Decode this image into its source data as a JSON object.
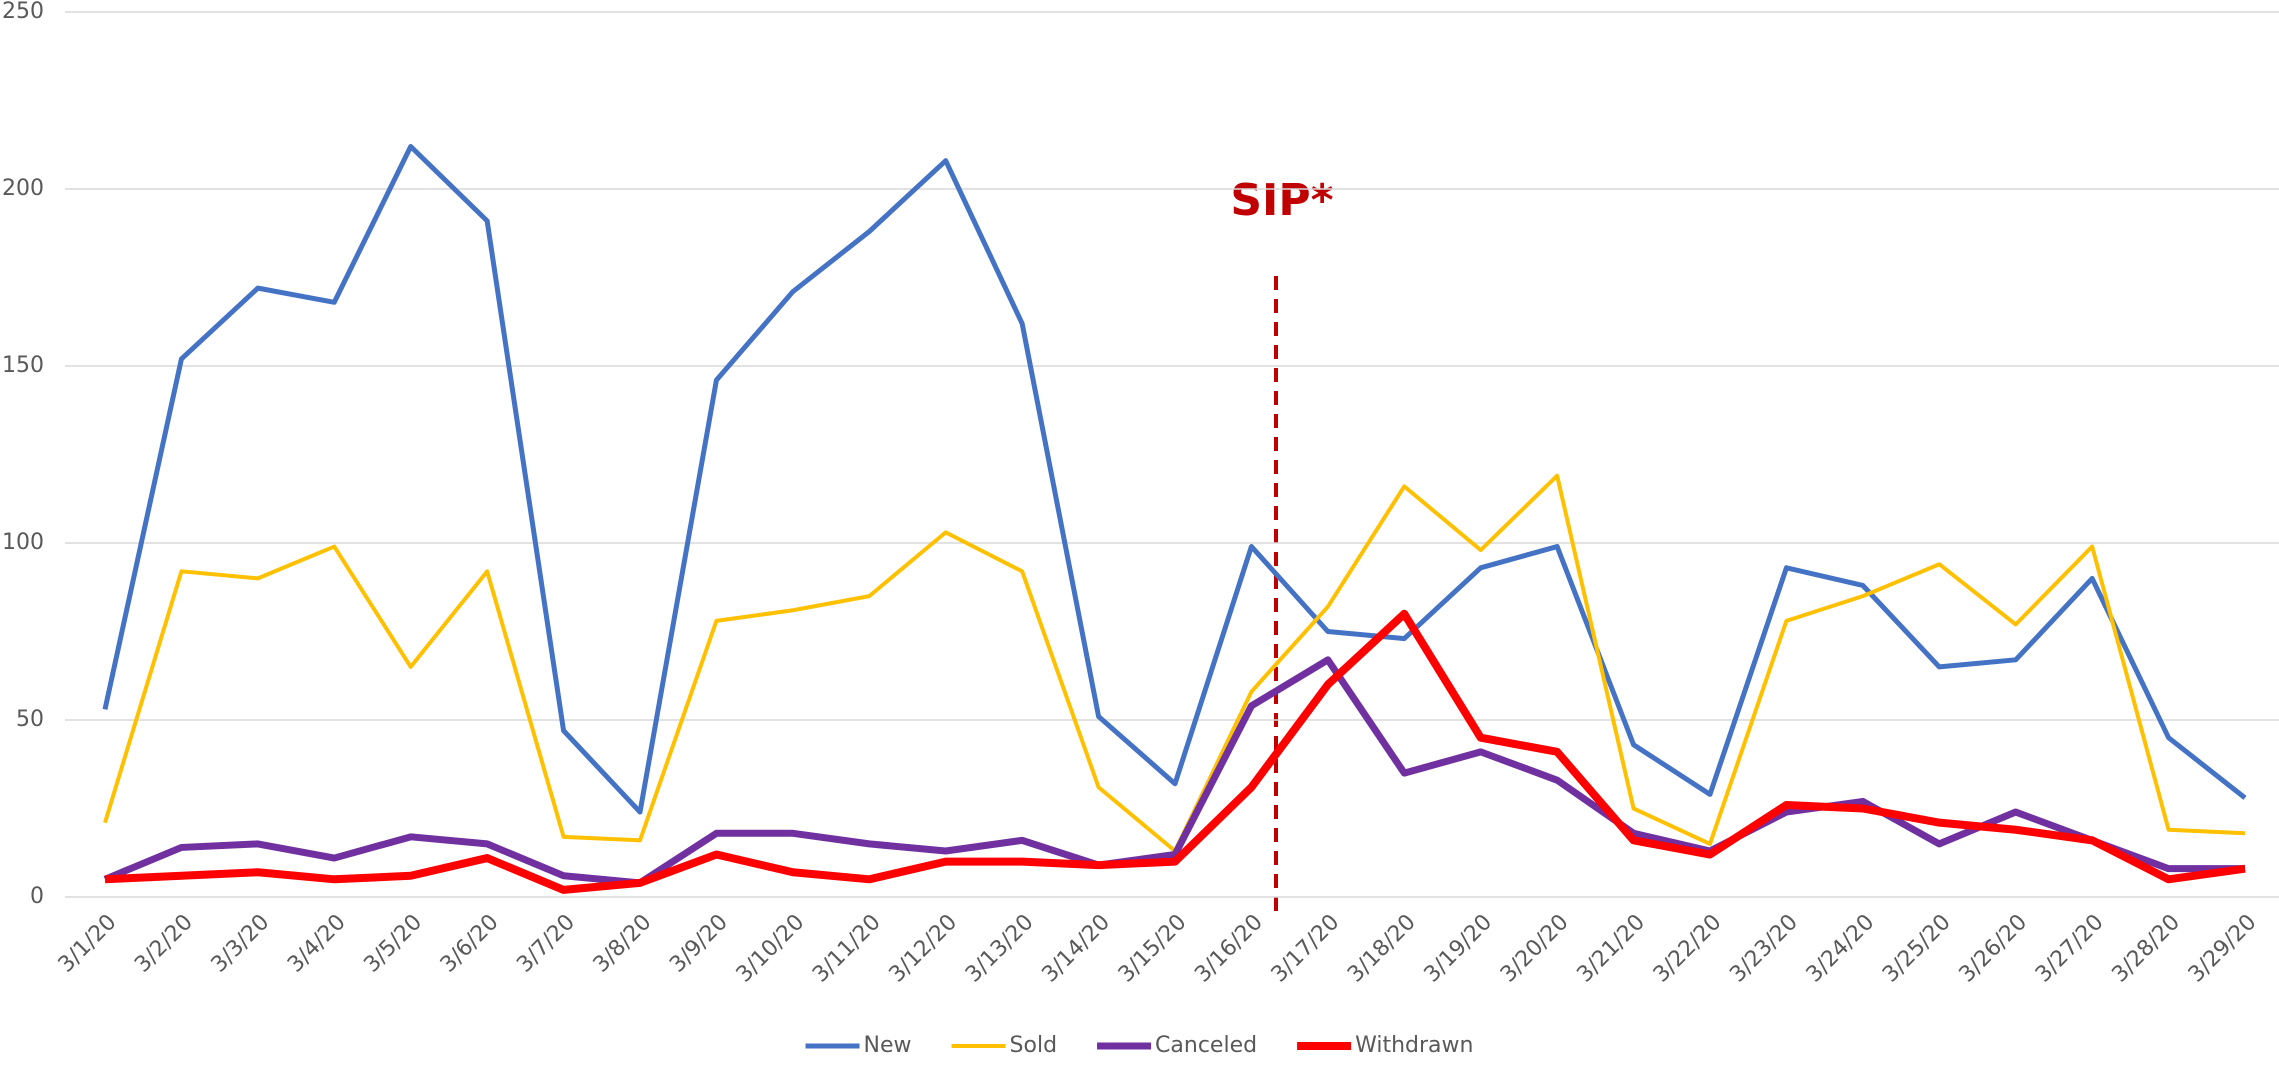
{
  "chart_data": {
    "type": "line",
    "categories": [
      "3/1/20",
      "3/2/20",
      "3/3/20",
      "3/4/20",
      "3/5/20",
      "3/6/20",
      "3/7/20",
      "3/8/20",
      "3/9/20",
      "3/10/20",
      "3/11/20",
      "3/12/20",
      "3/13/20",
      "3/14/20",
      "3/15/20",
      "3/16/20",
      "3/17/20",
      "3/18/20",
      "3/19/20",
      "3/20/20",
      "3/21/20",
      "3/22/20",
      "3/23/20",
      "3/24/20",
      "3/25/20",
      "3/26/20",
      "3/27/20",
      "3/28/20",
      "3/29/20"
    ],
    "series": [
      {
        "name": "New",
        "color": "#4472c4",
        "values": [
          53,
          152,
          172,
          168,
          212,
          191,
          47,
          24,
          146,
          171,
          188,
          208,
          162,
          51,
          32,
          99,
          75,
          73,
          93,
          99,
          43,
          29,
          93,
          88,
          65,
          67,
          90,
          45,
          28
        ]
      },
      {
        "name": "Sold",
        "color": "#ffc000",
        "values": [
          21,
          92,
          90,
          99,
          65,
          92,
          17,
          16,
          78,
          81,
          85,
          103,
          92,
          31,
          13,
          58,
          82,
          116,
          98,
          119,
          25,
          15,
          78,
          85,
          94,
          77,
          99,
          19,
          18
        ]
      },
      {
        "name": "Canceled",
        "color": "#7030a0",
        "values": [
          5,
          14,
          15,
          11,
          17,
          15,
          6,
          4,
          18,
          18,
          15,
          13,
          16,
          9,
          12,
          54,
          67,
          35,
          41,
          33,
          18,
          13,
          24,
          27,
          15,
          24,
          16,
          8,
          8
        ]
      },
      {
        "name": "Withdrawn",
        "color": "#ff0000",
        "values": [
          5,
          6,
          7,
          5,
          6,
          11,
          2,
          4,
          12,
          7,
          5,
          10,
          10,
          9,
          10,
          31,
          60,
          80,
          45,
          41,
          16,
          12,
          26,
          25,
          21,
          19,
          16,
          5,
          8
        ]
      }
    ],
    "annotation": "SIP*",
    "ylim": [
      0,
      250
    ],
    "yticks": [
      0,
      50,
      100,
      150,
      200,
      250
    ],
    "grid": true,
    "legend": "bottom"
  }
}
